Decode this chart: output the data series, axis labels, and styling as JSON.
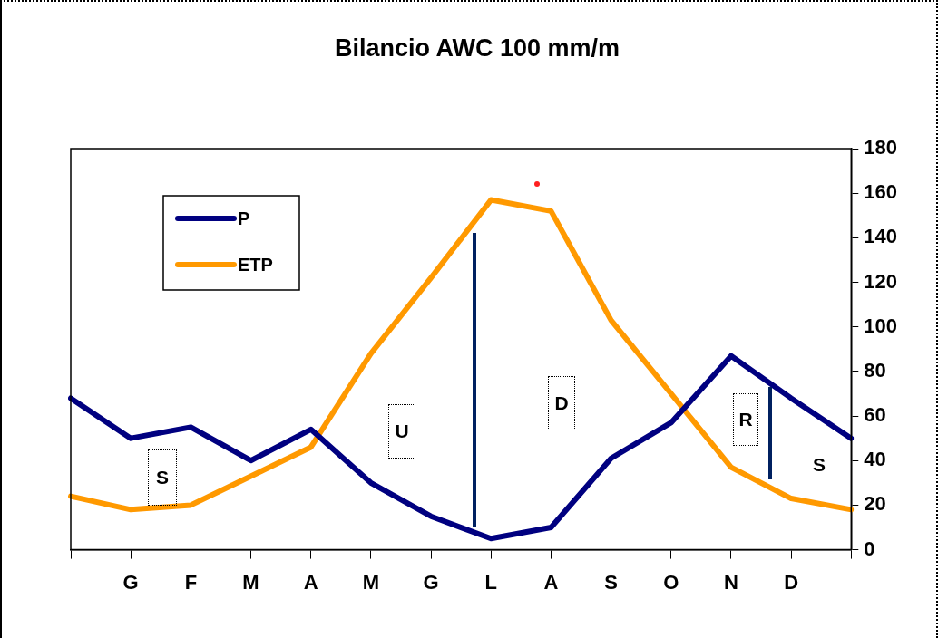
{
  "chart_data": {
    "type": "line",
    "title": "Bilancio AWC 100 mm/m",
    "categories": [
      null,
      "G",
      "F",
      "M",
      "A",
      "M",
      "G",
      "L",
      "A",
      "S",
      "O",
      "N",
      "D",
      null
    ],
    "series": [
      {
        "name": "P",
        "color": "#000080",
        "values": [
          68,
          50,
          55,
          40,
          54,
          30,
          15,
          5,
          10,
          41,
          57,
          87,
          68,
          50
        ]
      },
      {
        "name": "ETP",
        "color": "#ff9900",
        "values": [
          24,
          18,
          20,
          33,
          46,
          88,
          122,
          157,
          152,
          103,
          70,
          37,
          23,
          18
        ]
      }
    ],
    "ylim": [
      0,
      180
    ],
    "yticks": [
      0,
      20,
      40,
      60,
      80,
      100,
      120,
      140,
      160,
      180
    ],
    "annotations": [
      "S",
      "U",
      "D",
      "R",
      "S"
    ],
    "grid": false,
    "legend": "top left",
    "marker": "none",
    "line_style": "solid"
  }
}
